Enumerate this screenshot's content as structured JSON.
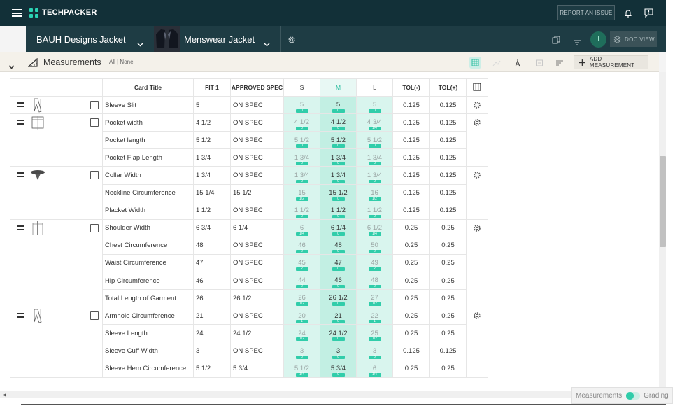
{
  "topbar": {
    "brand": "TECHPACKER",
    "report_label": "REPORT AN ISSUE"
  },
  "breadcrumb": {
    "brand": "BAUH Designs",
    "category": "Jacket",
    "product": "Menswear Jacket"
  },
  "user": {
    "initial": "I"
  },
  "doc_view_label": "DOC VIEW",
  "toolbar": {
    "title": "Measurements",
    "filter": "All | None",
    "add_label": "ADD MEASUREMENT"
  },
  "table": {
    "headers": {
      "card_title": "Card Title",
      "fit": "FIT 1",
      "approved": "APPROVED SPEC",
      "s": "S",
      "m": "M",
      "l": "L",
      "tol_minus": "TOL(-)",
      "tol_plus": "TOL(+)"
    },
    "groups": [
      {
        "rows": [
          {
            "name": "Sleeve Slit",
            "fit": "5",
            "approved": "ON SPEC",
            "s": "5",
            "s_d": "0",
            "m": "5",
            "m_d": "0",
            "l": "5",
            "l_d": "0",
            "tm": "0.125",
            "tp": "0.125"
          }
        ]
      },
      {
        "rows": [
          {
            "name": "Pocket width",
            "fit": "4 1/2",
            "approved": "ON SPEC",
            "s": "4 1/2",
            "s_d": "0",
            "m": "4 1/2",
            "m_d": "0",
            "l": "4 3/4",
            "l_d": "1/4",
            "tm": "0.125",
            "tp": "0.125"
          },
          {
            "name": "Pocket length",
            "fit": "5 1/2",
            "approved": "ON SPEC",
            "s": "5 1/2",
            "s_d": "0",
            "m": "5 1/2",
            "m_d": "0",
            "l": "5 1/2",
            "l_d": "0",
            "tm": "0.125",
            "tp": "0.125"
          },
          {
            "name": "Pocket Flap Length",
            "fit": "1 3/4",
            "approved": "ON SPEC",
            "s": "1 3/4",
            "s_d": "0",
            "m": "1 3/4",
            "m_d": "0",
            "l": "1 3/4",
            "l_d": "0",
            "tm": "0.125",
            "tp": "0.125"
          }
        ]
      },
      {
        "rows": [
          {
            "name": "Collar Width",
            "fit": "1 3/4",
            "approved": "ON SPEC",
            "s": "1 3/4",
            "s_d": "0",
            "m": "1 3/4",
            "m_d": "0",
            "l": "1 3/4",
            "l_d": "0",
            "tm": "0.125",
            "tp": "0.125"
          },
          {
            "name": "Neckline Circumference",
            "fit": "15 1/4",
            "approved": "15 1/2",
            "s": "15",
            "s_d": "1/2",
            "m": "15 1/2",
            "m_d": "0",
            "l": "16",
            "l_d": "1/2",
            "tm": "0.125",
            "tp": "0.125"
          },
          {
            "name": "Placket Width",
            "fit": "1 1/2",
            "approved": "ON SPEC",
            "s": "1 1/2",
            "s_d": "0",
            "m": "1 1/2",
            "m_d": "0",
            "l": "1 1/2",
            "l_d": "0",
            "tm": "0.125",
            "tp": "0.125"
          }
        ]
      },
      {
        "rows": [
          {
            "name": "Shoulder Width",
            "fit": "6 3/4",
            "approved": "6 1/4",
            "s": "6",
            "s_d": "1/4",
            "m": "6 1/4",
            "m_d": "0",
            "l": "6 1/2",
            "l_d": "1/4",
            "tm": "0.25",
            "tp": "0.25"
          },
          {
            "name": "Chest Circumference",
            "fit": "48",
            "approved": "ON SPEC",
            "s": "46",
            "s_d": "2",
            "m": "48",
            "m_d": "0",
            "l": "50",
            "l_d": "2",
            "tm": "0.25",
            "tp": "0.25"
          },
          {
            "name": "Waist Circumference",
            "fit": "47",
            "approved": "ON SPEC",
            "s": "45",
            "s_d": "2",
            "m": "47",
            "m_d": "0",
            "l": "49",
            "l_d": "2",
            "tm": "0.25",
            "tp": "0.25"
          },
          {
            "name": "Hip Circumference",
            "fit": "46",
            "approved": "ON SPEC",
            "s": "44",
            "s_d": "2",
            "m": "46",
            "m_d": "0",
            "l": "48",
            "l_d": "2",
            "tm": "0.25",
            "tp": "0.25"
          },
          {
            "name": "Total Length of Garment",
            "fit": "26",
            "approved": "26 1/2",
            "s": "26",
            "s_d": "1/2",
            "m": "26 1/2",
            "m_d": "0",
            "l": "27",
            "l_d": "1/2",
            "tm": "0.25",
            "tp": "0.25"
          }
        ]
      },
      {
        "rows": [
          {
            "name": "Armhole Circumference",
            "fit": "21",
            "approved": "ON SPEC",
            "s": "20",
            "s_d": "1",
            "m": "21",
            "m_d": "0",
            "l": "22",
            "l_d": "1",
            "tm": "0.25",
            "tp": "0.25"
          },
          {
            "name": "Sleeve Length",
            "fit": "24",
            "approved": "24 1/2",
            "s": "24",
            "s_d": "1/2",
            "m": "24 1/2",
            "m_d": "0",
            "l": "25",
            "l_d": "1/2",
            "tm": "0.25",
            "tp": "0.25"
          },
          {
            "name": "Sleeve Cuff Width",
            "fit": "3",
            "approved": "ON SPEC",
            "s": "3",
            "s_d": "0",
            "m": "3",
            "m_d": "0",
            "l": "3",
            "l_d": "0",
            "tm": "0.125",
            "tp": "0.125"
          },
          {
            "name": "Sleeve Hem Circumference",
            "fit": "5 1/2",
            "approved": "5 3/4",
            "s": "5 1/2",
            "s_d": "1/4",
            "m": "5 3/4",
            "m_d": "0",
            "l": "6",
            "l_d": "1/4",
            "tm": "0.25",
            "tp": "0.25"
          }
        ]
      }
    ]
  },
  "mode_toggle": {
    "left": "Measurements",
    "right": "Grading"
  },
  "colors": {
    "nav_dark": "#123038",
    "nav_sub": "#1e3c44",
    "accent": "#31cdaa",
    "grade_bg": "#d9f5ee",
    "grade_m_bg": "#c2efe3"
  },
  "icons": [
    "menu-icon",
    "techpacker-logo",
    "bell-icon",
    "feedback-icon",
    "chevron-down-icon",
    "gear-icon",
    "copy-icon",
    "filter-icon",
    "layers-icon",
    "ruler-icon",
    "grid-icon",
    "plus-icon",
    "drag-handle-icon",
    "columns-icon"
  ]
}
